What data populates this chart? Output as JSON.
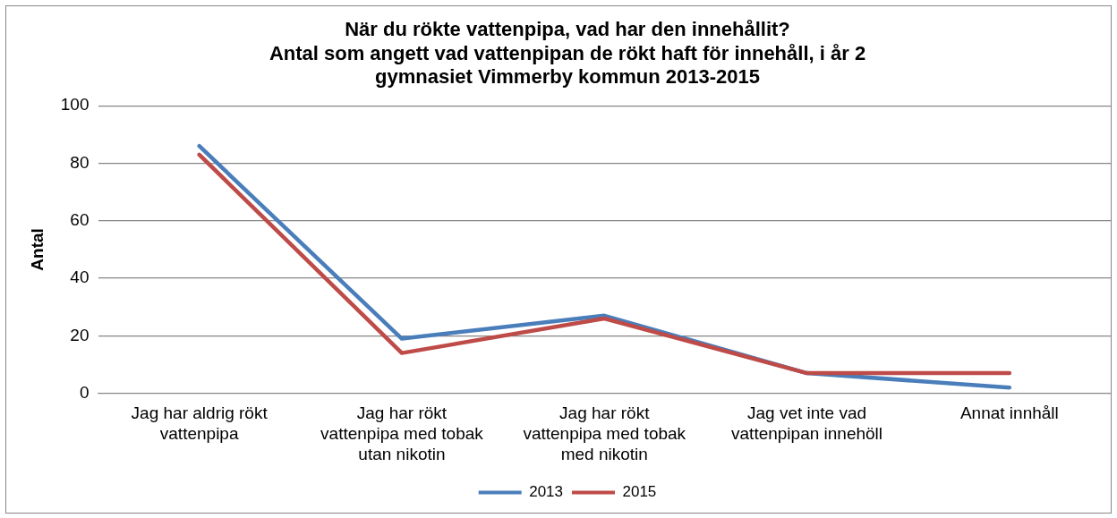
{
  "chart_data": {
    "type": "line",
    "title": "När du rökte vattenpipa, vad har den innehållit?\nAntal som angett vad vattenpipan de rökt haft för innehåll, i år 2\ngymnasiet Vimmerby kommun 2013-2015",
    "ylabel": "Antal",
    "categories": [
      "Jag har aldrig rökt vattenpipa",
      "Jag har rökt vattenpipa med tobak utan nikotin",
      "Jag har rökt vattenpipa med tobak med nikotin",
      "Jag vet inte vad vattenpipan innehöll",
      "Annat innhåll"
    ],
    "series": [
      {
        "name": "2013",
        "color": "#4a7ebb",
        "values": [
          86,
          19,
          27,
          7,
          2
        ]
      },
      {
        "name": "2015",
        "color": "#be4b48",
        "values": [
          83,
          14,
          26,
          7,
          7
        ]
      }
    ],
    "ylim": [
      0,
      100
    ],
    "yticks": [
      0,
      20,
      40,
      60,
      80,
      100
    ],
    "grid": "y",
    "legend": "bottom",
    "marker": "none",
    "line_style": "solid"
  }
}
